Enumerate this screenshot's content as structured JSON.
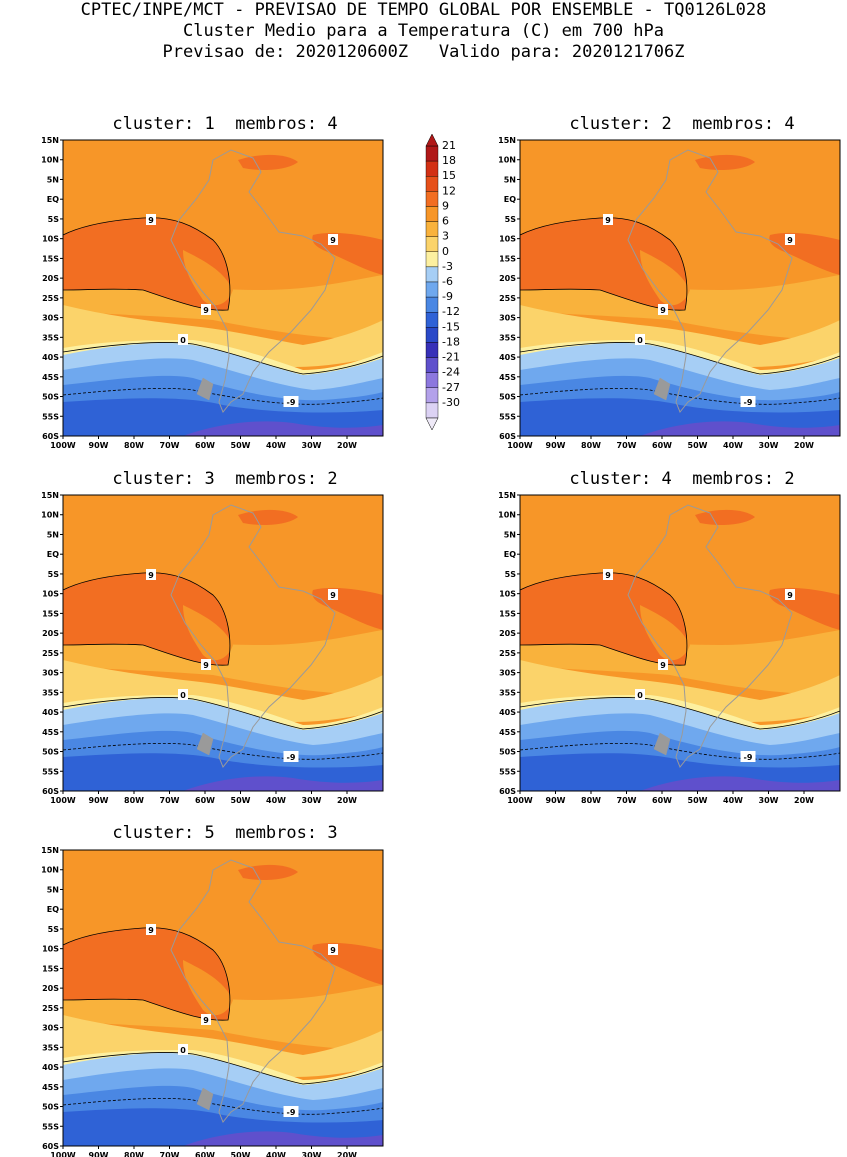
{
  "header": {
    "line1": "CPTEC/INPE/MCT - PREVISAO DE TEMPO GLOBAL POR ENSEMBLE - TQ0126L028",
    "line2": "Cluster Medio para a Temperatura (C) em 700 hPa",
    "line3": "Previsao de: 2020120600Z   Valido para: 2020121706Z"
  },
  "axes": {
    "lat_labels": [
      "15N",
      "10N",
      "5N",
      "EQ",
      "5S",
      "10S",
      "15S",
      "20S",
      "25S",
      "30S",
      "35S",
      "40S",
      "45S",
      "50S",
      "55S",
      "60S"
    ],
    "lon_labels": [
      "100W",
      "90W",
      "80W",
      "70W",
      "60W",
      "50W",
      "40W",
      "30W",
      "20W"
    ]
  },
  "colorbar": {
    "labels": [
      "21",
      "18",
      "15",
      "12",
      "9",
      "6",
      "3",
      "0",
      "-3",
      "-6",
      "-9",
      "-12",
      "-15",
      "-18",
      "-21",
      "-24",
      "-27",
      "-30"
    ],
    "colors": [
      "#b01818",
      "#d23014",
      "#e6501a",
      "#f26e22",
      "#f79628",
      "#f9b23c",
      "#fbd36a",
      "#fdf0a0",
      "#a6cef5",
      "#6fa8ee",
      "#4a87e3",
      "#2f62d6",
      "#2a49c8",
      "#3730b8",
      "#5f50cc",
      "#8c77de",
      "#b3a1ea",
      "#dcd2f4"
    ]
  },
  "contour_labels": {
    "warm": "9",
    "zero": "0",
    "cold": "-9"
  },
  "panels": [
    {
      "cluster_label": "cluster:",
      "cluster": "1",
      "members_label": "membros:",
      "members": "4"
    },
    {
      "cluster_label": "cluster:",
      "cluster": "2",
      "members_label": "membros:",
      "members": "4"
    },
    {
      "cluster_label": "cluster:",
      "cluster": "3",
      "members_label": "membros:",
      "members": "2"
    },
    {
      "cluster_label": "cluster:",
      "cluster": "4",
      "members_label": "membros:",
      "members": "2"
    },
    {
      "cluster_label": "cluster:",
      "cluster": "5",
      "members_label": "membros:",
      "members": "3"
    }
  ]
}
